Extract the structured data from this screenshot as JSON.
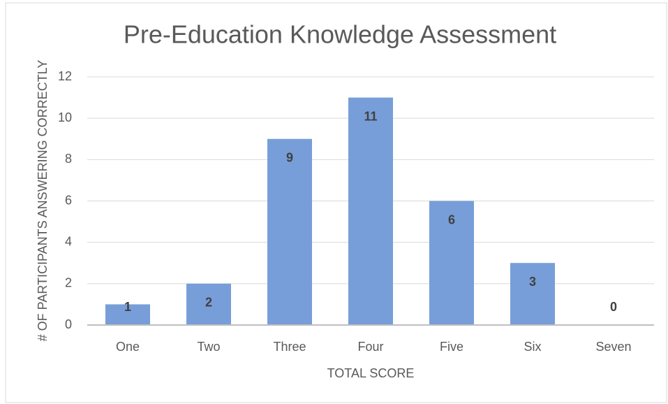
{
  "chart_data": {
    "type": "bar",
    "title": "Pre-Education Knowledge Assessment",
    "x_label": "TOTAL SCORE",
    "y_label": "# OF PARTICIPANTS ANSWERING CORRECTLY",
    "categories": [
      "One",
      "Two",
      "Three",
      "Four",
      "Five",
      "Six",
      "Seven"
    ],
    "values": [
      1,
      2,
      9,
      11,
      6,
      3,
      0
    ],
    "color": "#779ed8",
    "ylim": [
      0,
      12
    ],
    "yticks": [
      0,
      2,
      4,
      6,
      8,
      10,
      12
    ],
    "grid": true
  }
}
